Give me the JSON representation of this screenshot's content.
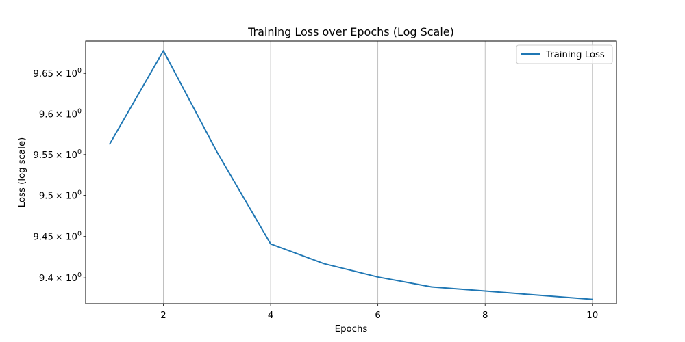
{
  "chart_data": {
    "type": "line",
    "title": "Training Loss over Epochs (Log Scale)",
    "xlabel": "Epochs",
    "ylabel": "Loss (log scale)",
    "yscale": "log",
    "xlim": [
      0.55,
      10.45
    ],
    "ylim": [
      9.3688,
      9.6901
    ],
    "x_ticks": [
      2,
      4,
      6,
      8,
      10
    ],
    "x_tick_labels": [
      "2",
      "4",
      "6",
      "8",
      "10"
    ],
    "y_ticks": [
      {
        "value": 9.4,
        "mantissa": "9.4"
      },
      {
        "value": 9.45,
        "mantissa": "9.45"
      },
      {
        "value": 9.5,
        "mantissa": "9.5"
      },
      {
        "value": 9.55,
        "mantissa": "9.55"
      },
      {
        "value": 9.6,
        "mantissa": "9.6"
      },
      {
        "value": 9.65,
        "mantissa": "9.65"
      }
    ],
    "y_tick_suffix": "× 10",
    "y_tick_exponent": "0",
    "grid": "vertical",
    "legend_position": "top-right",
    "series": [
      {
        "name": "Training Loss",
        "color": "#1f77b4",
        "x": [
          1,
          2,
          3,
          4,
          5,
          6,
          7,
          8,
          9,
          10
        ],
        "values": [
          9.563,
          9.678,
          9.553,
          9.441,
          9.417,
          9.401,
          9.389,
          9.384,
          9.379,
          9.374
        ]
      }
    ]
  }
}
